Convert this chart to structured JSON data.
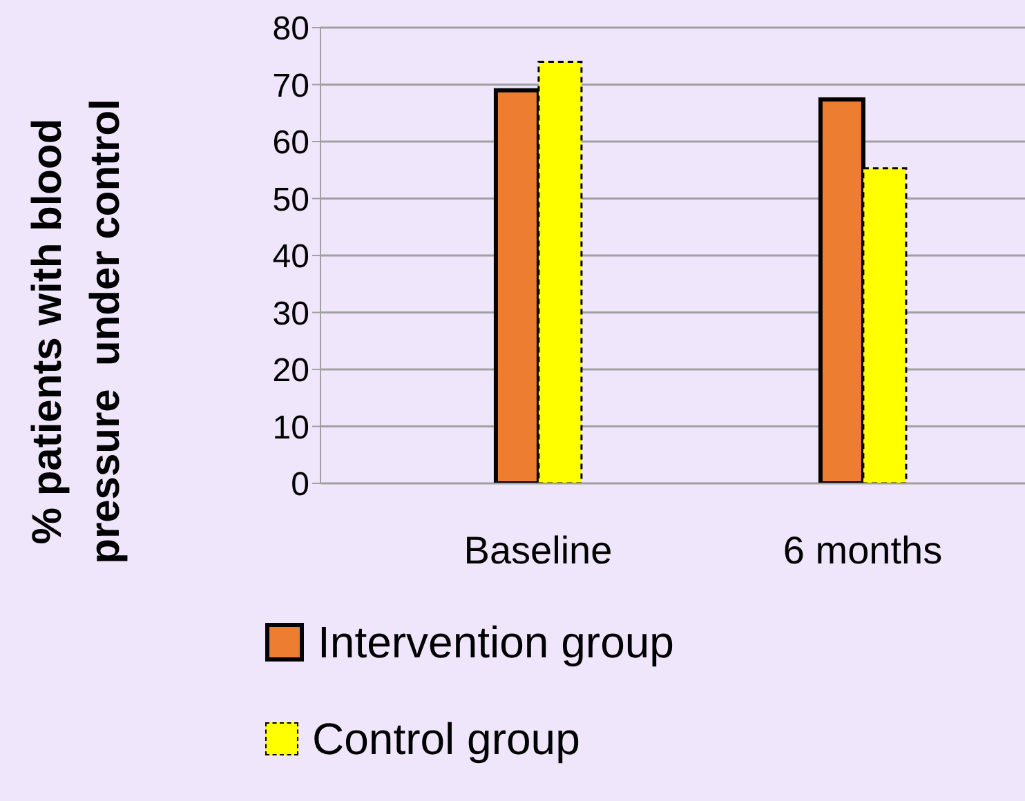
{
  "chart_data": {
    "type": "bar",
    "ylabel": "% patients with blood pressure  under control",
    "categories": [
      "Baseline",
      "6 months"
    ],
    "series": [
      {
        "name": "Intervention group",
        "color": "#ed7d31",
        "values": [
          69,
          67.4
        ]
      },
      {
        "name": "Control group",
        "color": "#ffff00",
        "values": [
          74,
          55.3
        ]
      }
    ],
    "ylim": [
      0,
      80
    ],
    "yticks": [
      0,
      10,
      20,
      30,
      40,
      50,
      60,
      70,
      80
    ],
    "grid": "y",
    "legend": "bottom"
  }
}
